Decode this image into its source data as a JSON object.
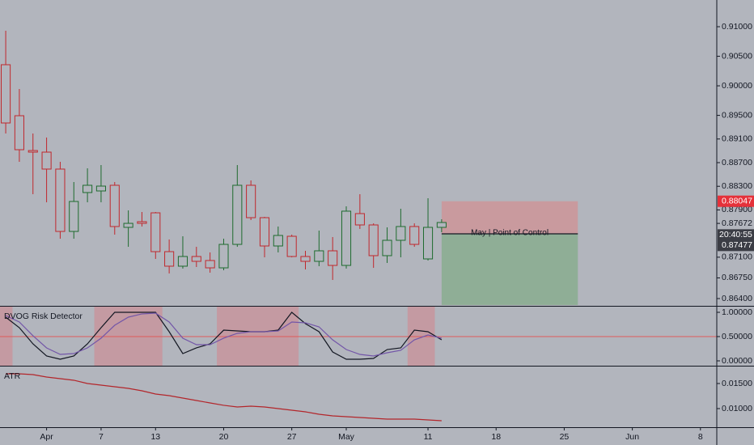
{
  "chart_data": [
    {
      "type": "candlestick",
      "open": [
        0.90357,
        0.89494,
        0.88905,
        0.88878,
        0.88591,
        0.87536,
        0.88194,
        0.88221,
        0.88317,
        0.87605,
        0.87701,
        0.87851,
        0.87194,
        0.86948,
        0.87112,
        0.87044,
        0.8692,
        0.87317,
        0.88317,
        0.87769,
        0.8729,
        0.87454,
        0.87112,
        0.8703,
        0.87208,
        0.86961,
        0.87838,
        0.87646,
        0.87126,
        0.87386,
        0.87619,
        0.87071,
        0.87605
      ],
      "high": [
        0.90932,
        0.89946,
        0.89193,
        0.89125,
        0.88714,
        0.88372,
        0.88604,
        0.88659,
        0.88372,
        0.87892,
        0.87865,
        0.87865,
        0.874,
        0.87454,
        0.87276,
        0.87181,
        0.87413,
        0.88659,
        0.88399,
        0.87783,
        0.87619,
        0.87482,
        0.87208,
        0.8755,
        0.87441,
        0.87961,
        0.88166,
        0.87673,
        0.87605,
        0.8792,
        0.87673,
        0.88098,
        0.87742
      ],
      "low": [
        0.89193,
        0.88714,
        0.88166,
        0.88029,
        0.87413,
        0.87413,
        0.88029,
        0.88029,
        0.87482,
        0.87276,
        0.87619,
        0.87071,
        0.86825,
        0.86907,
        0.86934,
        0.86838,
        0.86879,
        0.87276,
        0.87728,
        0.87098,
        0.87181,
        0.87098,
        0.86893,
        0.86948,
        0.86715,
        0.86907,
        0.87578,
        0.8692,
        0.87003,
        0.87098,
        0.87276,
        0.87044,
        0.87523
      ],
      "close": [
        0.89371,
        0.88919,
        0.88878,
        0.88591,
        0.87536,
        0.88043,
        0.88317,
        0.88303,
        0.87619,
        0.87673,
        0.87673,
        0.87194,
        0.86948,
        0.87112,
        0.8703,
        0.8692,
        0.87317,
        0.88317,
        0.87769,
        0.8729,
        0.87468,
        0.87112,
        0.8703,
        0.87208,
        0.86961,
        0.87879,
        0.87646,
        0.87126,
        0.87386,
        0.87619,
        0.87317,
        0.87605,
        0.87687
      ],
      "up_color": "#1e6b2e",
      "down_color": "#c0282d",
      "ylim": [
        0.86277,
        0.91452
      ],
      "yticks": [
        {
          "value": 0.91,
          "label": "0.91000"
        },
        {
          "value": 0.905,
          "label": "0.90500"
        },
        {
          "value": 0.9,
          "label": "0.90000"
        },
        {
          "value": 0.895,
          "label": "0.89500"
        },
        {
          "value": 0.891,
          "label": "0.89100"
        },
        {
          "value": 0.887,
          "label": "0.88700"
        },
        {
          "value": 0.883,
          "label": "0.88300"
        },
        {
          "value": 0.879,
          "label": "0.87900"
        },
        0.87672,
        {
          "value": 0.871,
          "label": "0.87100"
        },
        {
          "value": 0.8675,
          "label": "0.86750"
        },
        {
          "value": 0.864,
          "label": "0.86400"
        }
      ],
      "xlim": [
        -0.42,
        52.2
      ],
      "xticks": [
        {
          "value": 3,
          "label": "Apr"
        },
        {
          "value": 7,
          "label": "7"
        },
        {
          "value": 11,
          "label": "13"
        },
        {
          "value": 16,
          "label": "20"
        },
        {
          "value": 21,
          "label": "27"
        },
        {
          "value": 25,
          "label": "May"
        },
        {
          "value": 31,
          "label": "11"
        },
        {
          "value": 36,
          "label": "18"
        },
        {
          "value": 41,
          "label": "25"
        },
        {
          "value": 46,
          "label": "Jun"
        },
        {
          "value": 51,
          "label": "8"
        }
      ],
      "position": {
        "stop": 0.88047,
        "entry": 0.87495,
        "target": 0.86291,
        "start": 32,
        "end": 42,
        "stop_color": "#c99a9e",
        "target_color": "#8fae96"
      },
      "poc": {
        "label": "May | Point of Control",
        "value": 0.87495
      },
      "last_price": 0.87477,
      "countdown": "20:40:55"
    },
    {
      "type": "line",
      "title": "DVOG Risk Detector",
      "series": [
        {
          "color": "#131722",
          "values": [
            0.9,
            0.683,
            0.35,
            0.1,
            0.033,
            0.1,
            0.35,
            0.683,
            1,
            1,
            1,
            1,
            0.6,
            0.15,
            0.267,
            0.35,
            0.633,
            0.617,
            0.6,
            0.6,
            0.633,
            1,
            0.767,
            0.6,
            0.183,
            0.033,
            0.033,
            0.05,
            0.233,
            0.267,
            0.633,
            0.6,
            0.433
          ]
        },
        {
          "color": "#7356a8",
          "values": [
            0.933,
            0.8,
            0.517,
            0.267,
            0.133,
            0.15,
            0.267,
            0.467,
            0.733,
            0.9,
            0.967,
            0.983,
            0.8,
            0.467,
            0.333,
            0.333,
            0.467,
            0.567,
            0.6,
            0.6,
            0.617,
            0.8,
            0.783,
            0.7,
            0.433,
            0.233,
            0.133,
            0.1,
            0.167,
            0.217,
            0.433,
            0.533,
            0.467
          ]
        }
      ],
      "hline": 0.5,
      "hline_color": "#e05a5a",
      "zones": [
        [
          -0.5,
          0.5
        ],
        [
          6.5,
          11.5
        ],
        [
          15.5,
          21.5
        ],
        [
          29.5,
          31.5
        ]
      ],
      "zone_color": "#c49aa2",
      "ylim": [
        -0.1,
        1.1333
      ],
      "yticks": [
        {
          "value": 1,
          "label": "1.00000"
        },
        {
          "value": 0.5,
          "label": "0.50000"
        },
        {
          "value": 0,
          "label": "0.00000"
        }
      ]
    },
    {
      "type": "line",
      "title": "ATR",
      "series": [
        {
          "color": "#b3262b",
          "values": [
            0.01694,
            0.01694,
            0.01677,
            0.01629,
            0.01597,
            0.01565,
            0.015,
            0.01468,
            0.01435,
            0.01403,
            0.01355,
            0.0129,
            0.01258,
            0.0121,
            0.01161,
            0.01113,
            0.01065,
            0.01032,
            0.01048,
            0.01032,
            0.01,
            0.00968,
            0.00935,
            0.00887,
            0.00855,
            0.00839,
            0.00823,
            0.00806,
            0.0079,
            0.0079,
            0.0079,
            0.00774,
            0.00758
          ]
        }
      ],
      "ylim": [
        0.00629,
        0.018548
      ],
      "yticks": [
        {
          "value": 0.015,
          "label": "0.01500"
        },
        {
          "value": 0.01,
          "label": "0.01000"
        }
      ]
    }
  ]
}
